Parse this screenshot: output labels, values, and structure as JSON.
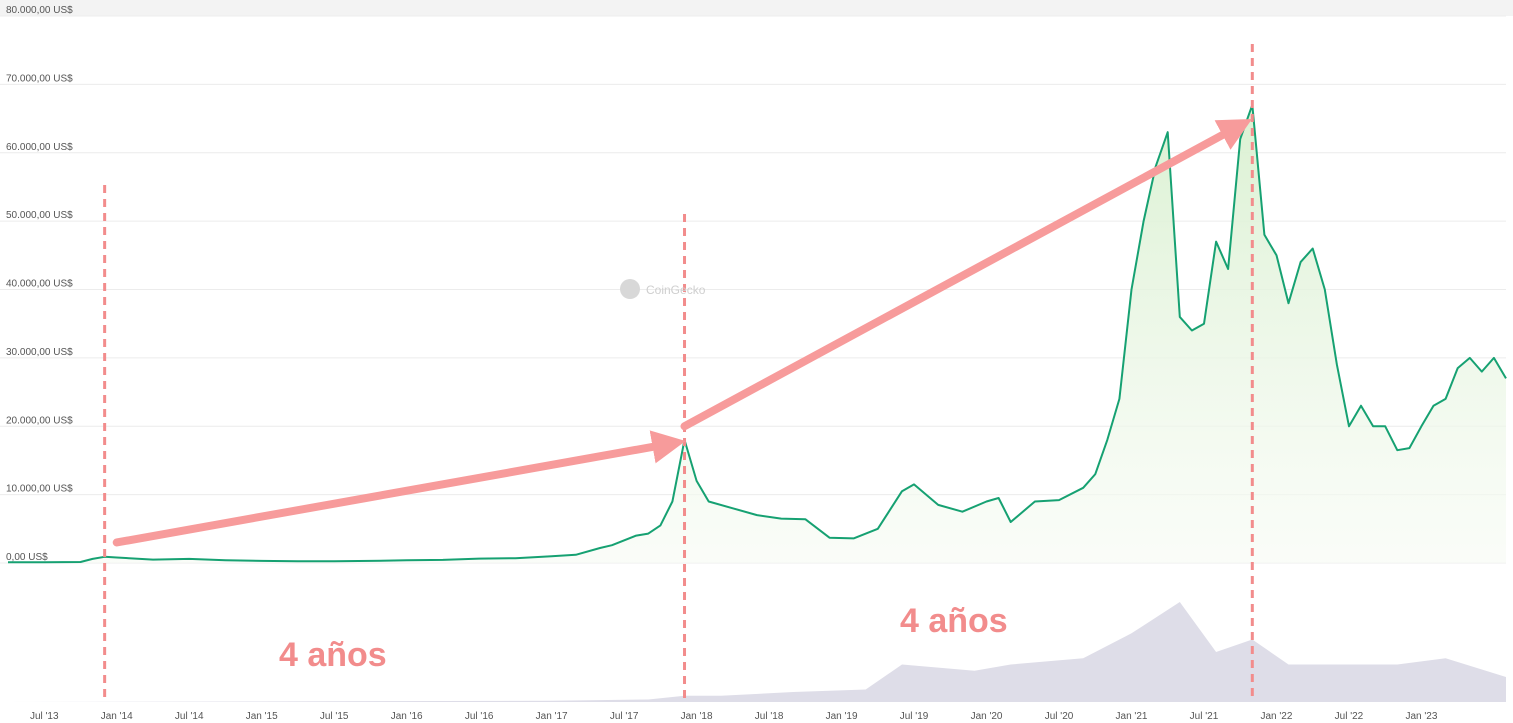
{
  "chart_data": {
    "type": "area",
    "y_tick_labels": [
      "0,00 US$",
      "10.000,00 US$",
      "20.000,00 US$",
      "30.000,00 US$",
      "40.000,00 US$",
      "50.000,00 US$",
      "60.000,00 US$",
      "70.000,00 US$",
      "80.000,00 US$"
    ],
    "y_ticks": [
      0,
      10000,
      20000,
      30000,
      40000,
      50000,
      60000,
      70000,
      80000
    ],
    "ylim": [
      0,
      80000
    ],
    "x_tick_labels": [
      "Jul '13",
      "Jan '14",
      "Jul '14",
      "Jan '15",
      "Jul '15",
      "Jan '16",
      "Jul '16",
      "Jan '17",
      "Jul '17",
      "Jan '18",
      "Jul '18",
      "Jan '19",
      "Jul '19",
      "Jan '20",
      "Jul '20",
      "Jan '21",
      "Jul '21",
      "Jan '22",
      "Jul '22",
      "Jan '23"
    ],
    "x_ticks": [
      "2013-07",
      "2014-01",
      "2014-07",
      "2015-01",
      "2015-07",
      "2016-01",
      "2016-07",
      "2017-01",
      "2017-07",
      "2018-01",
      "2018-07",
      "2019-01",
      "2019-07",
      "2020-01",
      "2020-07",
      "2021-01",
      "2021-07",
      "2022-01",
      "2022-07",
      "2023-01"
    ],
    "xlim": [
      "2013-04",
      "2023-08"
    ],
    "grid": true,
    "series": [
      {
        "color": "#16a172",
        "fill": "#e6f5e0",
        "x": [
          "2013-04",
          "2013-07",
          "2013-10",
          "2013-11",
          "2013-12",
          "2014-01",
          "2014-04",
          "2014-07",
          "2014-10",
          "2015-01",
          "2015-04",
          "2015-07",
          "2015-10",
          "2016-01",
          "2016-04",
          "2016-07",
          "2016-10",
          "2017-01",
          "2017-03",
          "2017-05",
          "2017-06",
          "2017-08",
          "2017-09",
          "2017-10",
          "2017-11",
          "2017-12",
          "2018-01",
          "2018-02",
          "2018-04",
          "2018-06",
          "2018-08",
          "2018-10",
          "2018-12",
          "2019-02",
          "2019-04",
          "2019-06",
          "2019-07",
          "2019-09",
          "2019-11",
          "2020-01",
          "2020-02",
          "2020-03",
          "2020-05",
          "2020-07",
          "2020-09",
          "2020-10",
          "2020-11",
          "2020-12",
          "2021-01",
          "2021-02",
          "2021-03",
          "2021-04",
          "2021-05",
          "2021-06",
          "2021-07",
          "2021-08",
          "2021-09",
          "2021-10",
          "2021-11",
          "2021-12",
          "2022-01",
          "2022-02",
          "2022-03",
          "2022-04",
          "2022-05",
          "2022-06",
          "2022-07",
          "2022-08",
          "2022-09",
          "2022-10",
          "2022-11",
          "2022-12",
          "2023-01",
          "2023-02",
          "2023-03",
          "2023-04",
          "2023-05",
          "2023-06",
          "2023-07",
          "2023-08"
        ],
        "values": [
          100,
          100,
          150,
          600,
          900,
          800,
          500,
          600,
          400,
          300,
          250,
          270,
          300,
          400,
          450,
          650,
          700,
          1000,
          1200,
          2200,
          2600,
          4000,
          4300,
          5500,
          9000,
          18000,
          12000,
          9000,
          8000,
          7000,
          6500,
          6400,
          3700,
          3600,
          5000,
          10500,
          11500,
          8500,
          7500,
          9000,
          9500,
          6000,
          9000,
          9200,
          11000,
          13000,
          18000,
          24000,
          40000,
          50000,
          58000,
          63000,
          36000,
          34000,
          35000,
          47000,
          43000,
          62000,
          67000,
          48000,
          45000,
          38000,
          44000,
          46000,
          40000,
          29000,
          20000,
          23000,
          20000,
          20000,
          16500,
          16800,
          20000,
          23000,
          24000,
          28500,
          30000,
          28000,
          30000,
          27000
        ]
      }
    ],
    "volume": {
      "color": "#dedde8",
      "x": [
        "2013-04",
        "2017-01",
        "2017-09",
        "2017-12",
        "2018-03",
        "2018-09",
        "2019-03",
        "2019-06",
        "2019-12",
        "2020-03",
        "2020-09",
        "2021-01",
        "2021-05",
        "2021-08",
        "2021-11",
        "2022-02",
        "2022-06",
        "2022-11",
        "2023-03",
        "2023-08"
      ],
      "values": [
        0.0,
        0.01,
        0.02,
        0.05,
        0.05,
        0.08,
        0.1,
        0.3,
        0.25,
        0.3,
        0.35,
        0.55,
        0.8,
        0.4,
        0.5,
        0.3,
        0.3,
        0.3,
        0.35,
        0.2
      ]
    },
    "annotations": [
      {
        "type": "vline",
        "x": "2013-12"
      },
      {
        "type": "vline",
        "x": "2017-12"
      },
      {
        "type": "vline",
        "x": "2021-11"
      },
      {
        "type": "arrow",
        "from": {
          "x": "2014-01",
          "y": 3000
        },
        "to": {
          "x": "2017-11",
          "y": 17500
        }
      },
      {
        "type": "arrow",
        "from": {
          "x": "2017-12",
          "y": 20000
        },
        "to": {
          "x": "2021-10",
          "y": 64000
        }
      }
    ],
    "annotation_labels": [
      "4 años",
      "4 años"
    ],
    "annotation_color": "#f28c8c",
    "watermark": "CoinGecko"
  }
}
